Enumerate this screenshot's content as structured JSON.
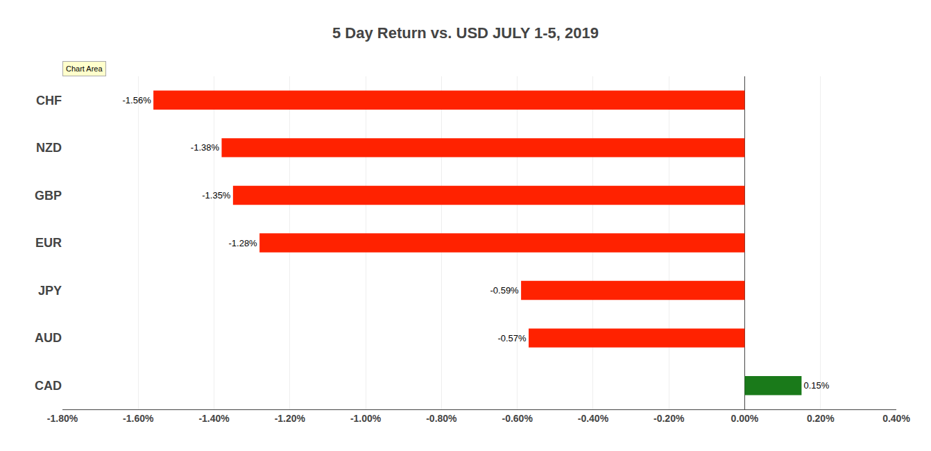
{
  "chart_data": {
    "type": "bar",
    "orientation": "horizontal",
    "title": "5 Day Return vs. USD JULY 1-5, 2019",
    "annotations": [
      "Chart Area"
    ],
    "categories": [
      "CHF",
      "NZD",
      "GBP",
      "EUR",
      "JPY",
      "AUD",
      "CAD"
    ],
    "values": [
      -1.56,
      -1.38,
      -1.35,
      -1.28,
      -0.59,
      -0.57,
      0.15
    ],
    "value_labels": [
      "-1.56%",
      "-1.38%",
      "-1.35%",
      "-1.28%",
      "-0.59%",
      "-0.57%",
      "0.15%"
    ],
    "data_labels": true,
    "colors": [
      "#FF2200",
      "#FF2200",
      "#FF2200",
      "#FF2200",
      "#FF2200",
      "#FF2200",
      "#1a7a1a"
    ],
    "xlim": [
      -1.8,
      0.4
    ],
    "xticks": [
      {
        "value": -1.8,
        "label": "-1.80%"
      },
      {
        "value": -1.6,
        "label": "-1.60%"
      },
      {
        "value": -1.4,
        "label": "-1.40%"
      },
      {
        "value": -1.2,
        "label": "-1.20%"
      },
      {
        "value": -1.0,
        "label": "-1.00%"
      },
      {
        "value": -0.8,
        "label": "-0.80%"
      },
      {
        "value": -0.6,
        "label": "-0.60%"
      },
      {
        "value": -0.4,
        "label": "-0.40%"
      },
      {
        "value": -0.2,
        "label": "-0.20%"
      },
      {
        "value": 0.0,
        "label": "0.00%"
      },
      {
        "value": 0.2,
        "label": "0.20%"
      },
      {
        "value": 0.4,
        "label": "0.40%"
      }
    ],
    "grid": true
  }
}
